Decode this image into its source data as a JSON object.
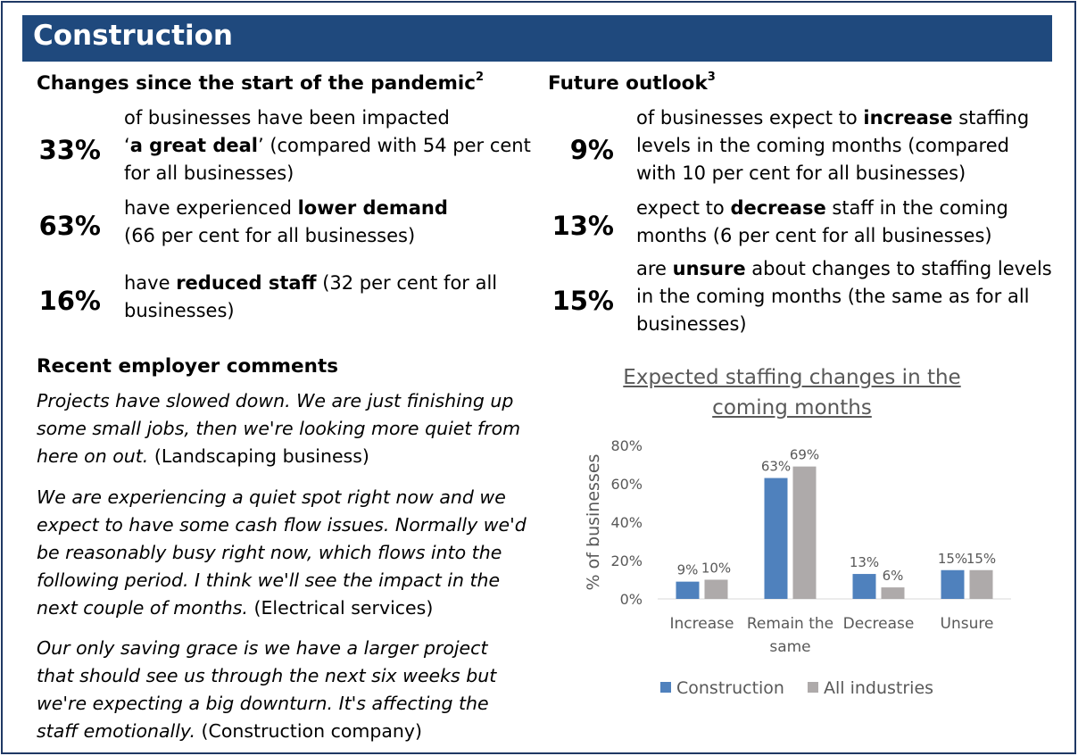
{
  "header": {
    "title": "Construction"
  },
  "changes": {
    "title": "Changes since the start of the pandemic",
    "title_sup": "2",
    "items": [
      {
        "pct": "33%",
        "lines": [
          "of businesses have been impacted",
          "‘<b>a great deal</b>’ (compared with 54 per cent",
          "for all businesses)"
        ]
      },
      {
        "pct": "63%",
        "lines": [
          "have experienced <b>lower demand</b>",
          "(66 per cent for all businesses)"
        ]
      },
      {
        "pct": "16%",
        "lines": [
          "have <b>reduced staff</b> (32 per cent for all",
          "businesses)"
        ]
      }
    ]
  },
  "outlook": {
    "title": "Future outlook",
    "title_sup": "3",
    "items": [
      {
        "pct": "9%",
        "lines": [
          "of businesses expect to <b>increase</b> staffing",
          "levels in the coming months (compared",
          "with 10 per cent for all businesses)"
        ]
      },
      {
        "pct": "13%",
        "lines": [
          "expect to <b>decrease</b> staff in the coming",
          "months (6 per cent for all businesses)"
        ]
      },
      {
        "pct": "15%",
        "lines": [
          "are <b>unsure</b> about changes to staffing levels",
          "in the coming months (the same as for all",
          "businesses)"
        ]
      }
    ]
  },
  "comments": {
    "title": "Recent employer comments",
    "items": [
      {
        "quote_lines": [
          "Projects have slowed down. We are just finishing up",
          "some small jobs, then we're looking more quiet from",
          "here on out."
        ],
        "source": "(Landscaping business)"
      },
      {
        "quote_lines": [
          "We are experiencing a quiet spot right now and we",
          "expect to have some cash flow issues. Normally we'd",
          "be reasonably busy right now, which flows into the",
          "following period. I think we'll see the impact in the",
          "next couple of months."
        ],
        "source": "(Electrical services)"
      },
      {
        "quote_lines": [
          "Our only saving grace is we have a larger project",
          "that should see us through the next six weeks but",
          "we're expecting a big downturn. It's affecting the",
          "staff emotionally."
        ],
        "source": "(Construction company)"
      }
    ]
  },
  "chart_data": {
    "type": "bar",
    "title": "Expected staffing changes in the coming months",
    "title_lines": [
      "Expected staffing changes in the",
      "coming months"
    ],
    "ylabel": "% of businesses",
    "ylim": [
      0,
      80
    ],
    "yticks": [
      "0%",
      "20%",
      "40%",
      "60%",
      "80%"
    ],
    "categories": [
      "Increase",
      "Remain the same",
      "Decrease",
      "Unsure"
    ],
    "category_lines": [
      [
        "Increase"
      ],
      [
        "Remain the",
        "same"
      ],
      [
        "Decrease"
      ],
      [
        "Unsure"
      ]
    ],
    "series": [
      {
        "name": "Construction",
        "values": [
          9,
          63,
          13,
          15
        ],
        "labels": [
          "9%",
          "63%",
          "13%",
          "15%"
        ],
        "color": "#4f81bd"
      },
      {
        "name": "All industries",
        "values": [
          10,
          69,
          6,
          15
        ],
        "labels": [
          "10%",
          "69%",
          "6%",
          "15%"
        ],
        "color": "#aeaaaa"
      }
    ],
    "legend_position": "bottom",
    "grid": false
  },
  "colors": {
    "header_bg": "#1f497d",
    "frame": "#1f3864",
    "axis_text": "#595959"
  }
}
